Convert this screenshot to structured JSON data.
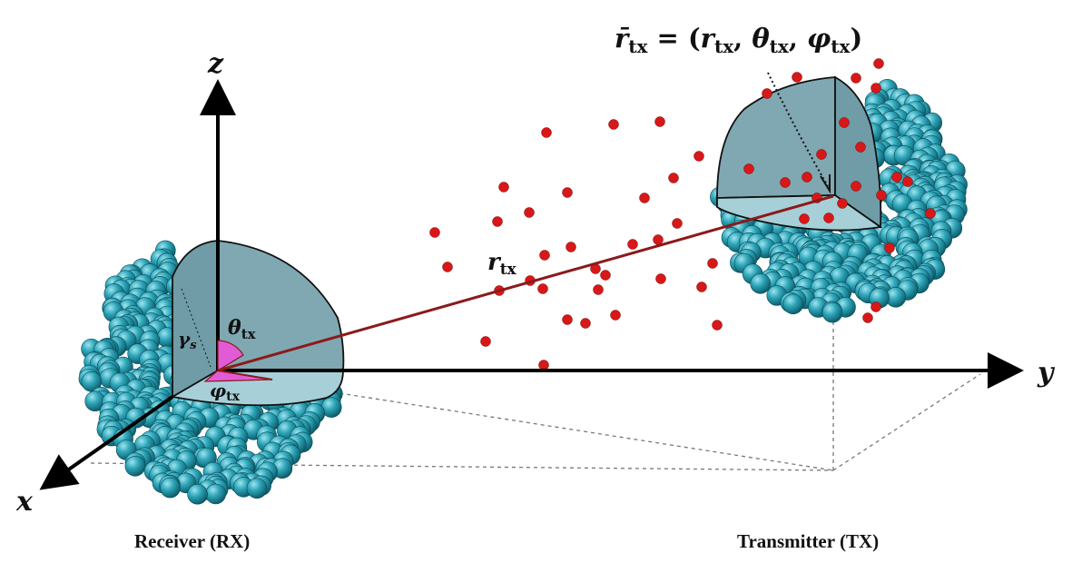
{
  "axes": {
    "x_label": "x",
    "y_label": "y",
    "z_label": "z"
  },
  "formula": {
    "lhs": "r̄",
    "lhs_sub": "tx",
    "eq": " = (",
    "r": "r",
    "r_sub": "tx",
    "c1": ", ",
    "theta": "θ",
    "theta_sub": "tx",
    "c2": ", ",
    "phi": "φ",
    "phi_sub": "tx",
    "close": ")"
  },
  "labels": {
    "r_tx": "r",
    "r_tx_sub": "tx",
    "theta": "θ",
    "theta_sub": "tx",
    "phi": "φ",
    "phi_sub": "tx",
    "gamma": "γ",
    "gamma_sub": "s"
  },
  "captions": {
    "receiver": "Receiver (RX)",
    "transmitter": "Transmitter (TX)"
  },
  "colors": {
    "sphere_ball": "#1f8fa3",
    "sphere_ball_light": "#5cc4d4",
    "wedge_fill": "#7fa8b2",
    "wedge_fill_light": "#a7cfd8",
    "scatterer": "#d81818",
    "ray": "#8b1a1a",
    "angle_fill": "#e25bd6"
  },
  "icons": {
    "receiver": "sphere-array-icon",
    "transmitter": "sphere-array-icon",
    "scatterer": "red-dot-icon"
  }
}
